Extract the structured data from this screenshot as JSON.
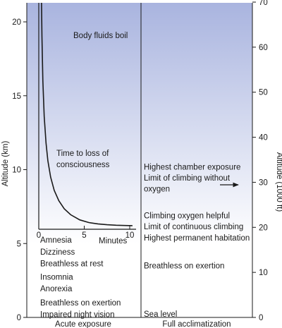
{
  "chart_data": {
    "type": "line",
    "left_axis": {
      "label": "Altitude (km)",
      "ticks": [
        0,
        5,
        10,
        15,
        20
      ],
      "range": [
        0,
        21.5
      ]
    },
    "right_axis": {
      "label": "Altitude (1000 ft)",
      "ticks": [
        0,
        10,
        20,
        30,
        40,
        50,
        60,
        70
      ],
      "range": [
        0,
        70.5
      ]
    },
    "background_gradient": {
      "top_color": "#a9b4df",
      "bottom_color": "#ffffff",
      "bottom_altitude_km": 5.0
    },
    "bottom_labels": [
      "Acute exposure",
      "Full acclimatization"
    ],
    "inset": {
      "title": "Time to loss of consciousness",
      "xlabel": "Minutes",
      "x_ticks": [
        0,
        5,
        10
      ],
      "x_range": [
        0,
        10.5
      ],
      "curve": {
        "x": [
          0.3,
          0.35,
          0.45,
          0.6,
          0.8,
          1.0,
          1.3,
          1.7,
          2.2,
          2.8,
          3.5,
          4.5,
          5.5,
          6.5,
          7.5,
          8.5,
          9.5,
          10.3
        ],
        "y_km": [
          21.5,
          19.0,
          16.0,
          13.6,
          11.8,
          10.6,
          9.5,
          8.6,
          7.9,
          7.35,
          6.95,
          6.6,
          6.42,
          6.33,
          6.27,
          6.24,
          6.22,
          6.21
        ]
      }
    },
    "acute_annotations": [
      {
        "text": "Body fluids boil",
        "km": 19.1
      },
      {
        "text": "Amnesia",
        "km": 5.25
      },
      {
        "text": "Dizziness",
        "km": 4.45
      },
      {
        "text": "Breathless at rest",
        "km": 3.65
      },
      {
        "text": "Insomnia",
        "km": 2.75
      },
      {
        "text": "Anorexia",
        "km": 1.95
      },
      {
        "text": "Breathless on exertion",
        "km": 1.0
      },
      {
        "text": "Impaired night vision",
        "km": 0.22
      }
    ],
    "acclimatization_annotations": [
      {
        "text": "Highest chamber exposure",
        "km": 10.2
      },
      {
        "text": "Limit of climbing without",
        "km": 9.45
      },
      {
        "text": "oxygen",
        "km": 8.7
      },
      {
        "text": "Climbing oxygen helpful",
        "km": 6.9
      },
      {
        "text": "Limit of continuous climbing",
        "km": 6.15
      },
      {
        "text": "Highest permanent habitation",
        "km": 5.4
      },
      {
        "text": "Breathless on exertion",
        "km": 3.5
      },
      {
        "text": "Sea level",
        "km": 0.25
      }
    ],
    "arrow_km": 9.05
  }
}
